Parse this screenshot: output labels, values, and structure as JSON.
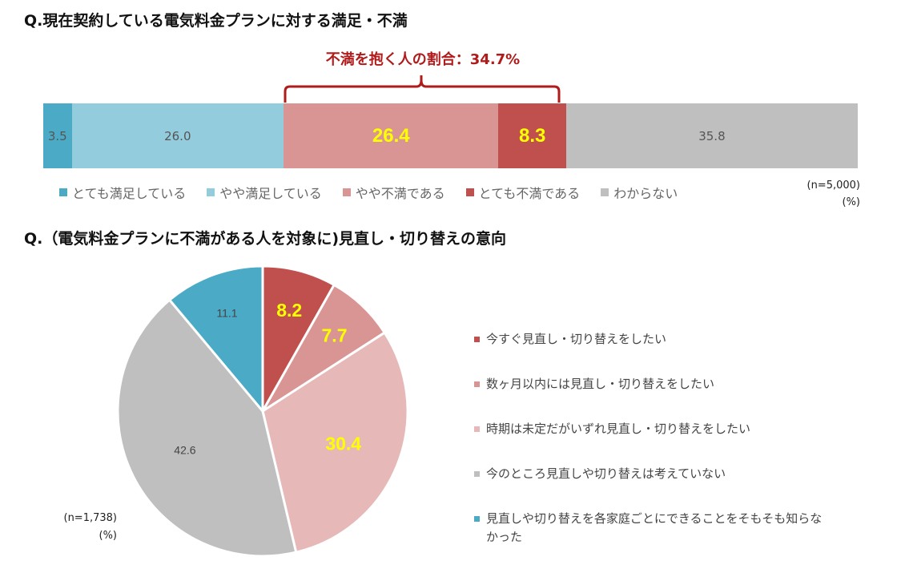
{
  "titles": {
    "bar": "Q.現在契約している電気料金プランに対する満足・不満",
    "pie": "Q.（電気料金プランに不満がある人を対象に)見直し・切り替えの意向"
  },
  "annotation": {
    "dissatisfied_share": "不満を抱く人の割合：34.7%"
  },
  "chart_data": [
    {
      "type": "bar",
      "orientation": "horizontal-stacked-100",
      "title": "Q.現在契約している電気料金プランに対する満足・不満",
      "sample_note": "(n=5,000)",
      "unit_note": "(%)",
      "legend_placement": "bottom",
      "series": [
        {
          "name": "とても満足している",
          "value": 3.5,
          "label": "3.5",
          "color": "#4babc6",
          "emphasis": false
        },
        {
          "name": "やや満足している",
          "value": 26.0,
          "label": "26.0",
          "color": "#93cddd",
          "emphasis": false
        },
        {
          "name": "やや不満である",
          "value": 26.4,
          "label": "26.4",
          "color": "#d99594",
          "emphasis": true
        },
        {
          "name": "とても不満である",
          "value": 8.3,
          "label": "8.3",
          "color": "#c0504d",
          "emphasis": true
        },
        {
          "name": "わからない",
          "value": 35.8,
          "label": "35.8",
          "color": "#bfbfbf",
          "emphasis": false
        }
      ]
    },
    {
      "type": "pie",
      "title": "Q.（電気料金プランに不満がある人を対象に)見直し・切り替えの意向",
      "sample_note": "(n=1,738)",
      "unit_note": "(%)",
      "legend_placement": "right",
      "slices": [
        {
          "name": "今すぐ見直し・切り替えをしたい",
          "value": 8.2,
          "label": "8.2",
          "color": "#c0504d",
          "emphasis": true
        },
        {
          "name": "数ヶ月以内には見直し・切り替えをしたい",
          "value": 7.7,
          "label": "7.7",
          "color": "#d99594",
          "emphasis": true
        },
        {
          "name": "時期は未定だがいずれ見直し・切り替えをしたい",
          "value": 30.4,
          "label": "30.4",
          "color": "#e6b9b8",
          "emphasis": true
        },
        {
          "name": "今のところ見直しや切り替えは考えていない",
          "value": 42.6,
          "label": "42.6",
          "color": "#bfbfbf",
          "emphasis": false
        },
        {
          "name": "見直しや切り替えを各家庭ごとにできることをそもそも知らなかった",
          "value": 11.1,
          "label": "11.1",
          "color": "#4babc6",
          "emphasis": false
        }
      ]
    }
  ]
}
